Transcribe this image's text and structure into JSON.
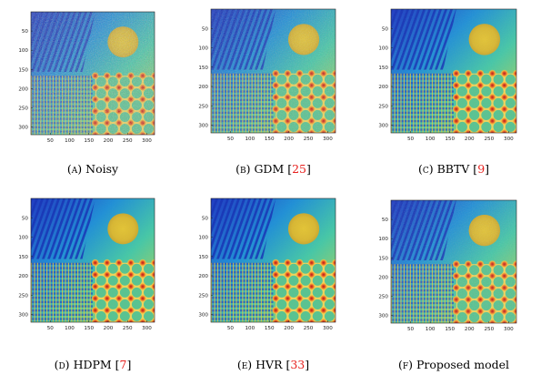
{
  "figure": {
    "panels": [
      {
        "id": "a",
        "letter": "(a)",
        "name": "Noisy",
        "ref": "",
        "close": ""
      },
      {
        "id": "b",
        "letter": "(b)",
        "name": "GDM [",
        "ref": "25",
        "close": "]"
      },
      {
        "id": "c",
        "letter": "(c)",
        "name": "BBTV [",
        "ref": "9",
        "close": "]"
      },
      {
        "id": "d",
        "letter": "(d)",
        "name": "HDPM [",
        "ref": "7",
        "close": "]"
      },
      {
        "id": "e",
        "letter": "(e)",
        "name": "HVR [",
        "ref": "33",
        "close": "]"
      },
      {
        "id": "f",
        "letter": "(f)",
        "name": "Proposed model",
        "ref": "",
        "close": ""
      }
    ],
    "y_ticks": [
      "50",
      "100",
      "150",
      "200",
      "250",
      "300"
    ],
    "x_ticks": [
      "50",
      "100",
      "150",
      "200",
      "250",
      "300"
    ],
    "colors": {
      "reference_link": "#e8201e"
    }
  }
}
